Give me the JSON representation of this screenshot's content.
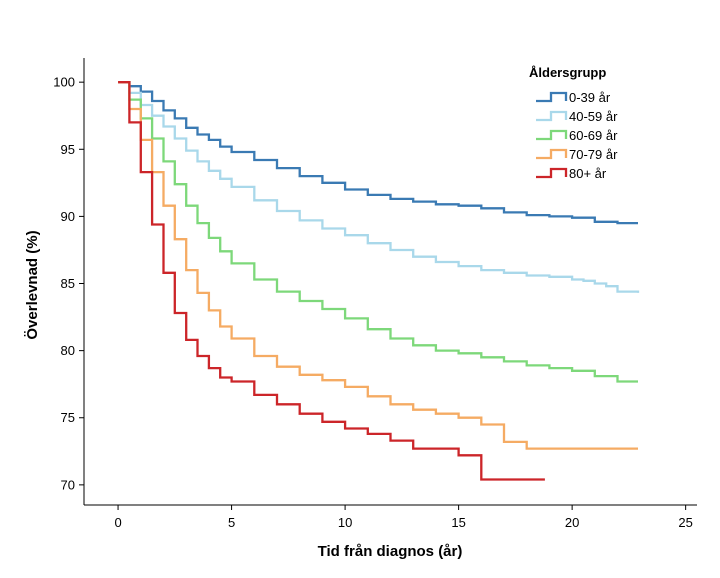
{
  "chart_data": {
    "type": "line",
    "step": true,
    "xlabel": "Tid från diagnos (år)",
    "ylabel": "Överlevnad (%)",
    "xlim": [
      -1.5,
      25.5
    ],
    "ylim": [
      68.5,
      101.8
    ],
    "x_ticks": [
      0,
      5,
      10,
      15,
      20,
      25
    ],
    "x_tick_labels": [
      "0",
      "5",
      "10",
      "15",
      "20",
      "25"
    ],
    "y_ticks": [
      70,
      75,
      80,
      85,
      90,
      95,
      100
    ],
    "y_tick_labels": [
      "70",
      "75",
      "80",
      "85",
      "90",
      "95",
      "100"
    ],
    "grid": false,
    "legend": {
      "title": "Åldersgrupp",
      "placement": "top-right"
    },
    "series": [
      {
        "name": "0-39 år",
        "color": "#3a7ab3",
        "x": [
          0,
          0.5,
          1,
          1.5,
          2,
          2.5,
          3,
          3.5,
          4,
          4.5,
          5,
          6,
          7,
          8,
          9,
          10,
          11,
          12,
          13,
          14,
          15,
          16,
          17,
          18,
          19,
          20,
          21,
          22,
          22.9
        ],
        "y": [
          100,
          99.7,
          99.3,
          98.6,
          97.9,
          97.3,
          96.6,
          96.1,
          95.7,
          95.2,
          94.8,
          94.2,
          93.6,
          93.0,
          92.5,
          92.0,
          91.6,
          91.3,
          91.1,
          90.9,
          90.8,
          90.6,
          90.3,
          90.1,
          90.0,
          89.9,
          89.6,
          89.5,
          89.5
        ]
      },
      {
        "name": "40-59 år",
        "color": "#a9d8ea",
        "x": [
          0,
          0.5,
          1,
          1.5,
          2,
          2.5,
          3,
          3.5,
          4,
          4.5,
          5,
          6,
          7,
          8,
          9,
          10,
          11,
          12,
          13,
          14,
          15,
          16,
          17,
          18,
          19,
          20,
          20.5,
          21,
          21.5,
          22,
          22.9
        ],
        "y": [
          100,
          99.2,
          98.3,
          97.5,
          96.7,
          95.8,
          94.9,
          94.1,
          93.4,
          92.8,
          92.2,
          91.2,
          90.4,
          89.7,
          89.1,
          88.6,
          88.0,
          87.5,
          87.0,
          86.6,
          86.3,
          86.0,
          85.8,
          85.6,
          85.5,
          85.3,
          85.2,
          85.0,
          84.8,
          84.4,
          84.3
        ]
      },
      {
        "name": "60-69 år",
        "color": "#7dd87a",
        "x": [
          0,
          0.5,
          1,
          1.5,
          2,
          2.5,
          3,
          3.5,
          4,
          4.5,
          5,
          6,
          7,
          8,
          9,
          10,
          11,
          12,
          13,
          14,
          15,
          16,
          17,
          18,
          19,
          20,
          21,
          22,
          22.9
        ],
        "y": [
          100,
          98.7,
          97.3,
          95.8,
          94.1,
          92.4,
          90.8,
          89.5,
          88.4,
          87.4,
          86.5,
          85.3,
          84.4,
          83.7,
          83.1,
          82.4,
          81.6,
          80.9,
          80.4,
          80.0,
          79.8,
          79.5,
          79.2,
          78.9,
          78.7,
          78.5,
          78.1,
          77.7,
          77.7
        ]
      },
      {
        "name": "70-79 år",
        "color": "#f5ab63",
        "x": [
          0,
          0.5,
          1,
          1.5,
          2,
          2.5,
          3,
          3.5,
          4,
          4.5,
          5,
          6,
          7,
          8,
          9,
          10,
          11,
          12,
          13,
          14,
          15,
          16,
          17,
          18,
          19,
          20,
          21,
          22,
          22.9
        ],
        "y": [
          100,
          98.0,
          95.7,
          93.3,
          90.8,
          88.3,
          86.0,
          84.3,
          83.0,
          81.8,
          80.9,
          79.6,
          78.8,
          78.2,
          77.8,
          77.3,
          76.6,
          76.0,
          75.6,
          75.3,
          75.0,
          74.5,
          73.2,
          72.7,
          72.7,
          72.7,
          72.7,
          72.7,
          72.7
        ]
      },
      {
        "name": "80+ år",
        "color": "#cc2529",
        "x": [
          0,
          0.5,
          1,
          1.5,
          2,
          2.5,
          3,
          3.5,
          4,
          4.5,
          5,
          6,
          7,
          8,
          9,
          10,
          11,
          12,
          13,
          14,
          15,
          16,
          17,
          18,
          18.8
        ],
        "y": [
          100,
          97.0,
          93.3,
          89.4,
          85.8,
          82.8,
          80.8,
          79.6,
          78.7,
          78.0,
          77.7,
          76.7,
          76.0,
          75.3,
          74.7,
          74.2,
          73.8,
          73.3,
          72.7,
          72.7,
          72.2,
          70.4,
          70.4,
          70.4,
          70.4
        ]
      }
    ]
  }
}
